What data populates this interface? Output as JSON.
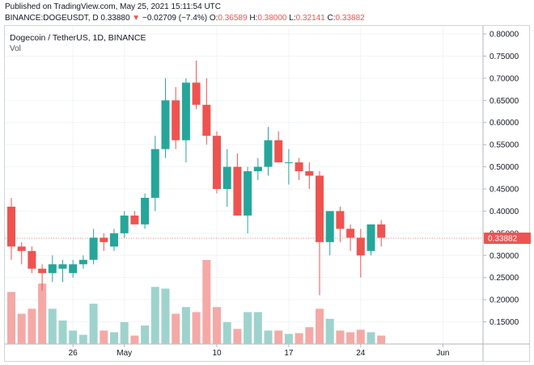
{
  "header": {
    "published_line": "Published on TradingView.com, May 25, 2021 15:11:54 UTC",
    "symbol": "BINANCE:DOGEUSDT, D",
    "last": "0.33880",
    "change": "−0.02709 (−7.4%)",
    "o_label": "O:",
    "o_value": "0.36589",
    "h_label": "H:",
    "h_value": "0.38000",
    "l_label": "L:",
    "l_value": "0.32141",
    "c_label": "C:",
    "c_value": "0.33882"
  },
  "legend": {
    "title": "Dogecoin / TetherUS, 1D, BINANCE",
    "volume_label": "Vol"
  },
  "colors": {
    "up": "#26a69a",
    "down": "#ef5350",
    "up_vol": "#9ed3cd",
    "down_vol": "#f5a9a7",
    "price_tag": "#ef5350"
  },
  "chart_data": {
    "type": "candlestick",
    "title": "Dogecoin / TetherUS, 1D, BINANCE",
    "xlabel": "",
    "ylabel": "",
    "ylim": [
      0.1,
      0.8
    ],
    "y_ticks": [
      "0.80000",
      "0.75000",
      "0.70000",
      "0.65000",
      "0.60000",
      "0.55000",
      "0.50000",
      "0.45000",
      "0.40000",
      "0.35000",
      "0.30000",
      "0.25000",
      "0.20000",
      "0.15000"
    ],
    "x_ticks": [
      {
        "label": "26",
        "index": 6
      },
      {
        "label": "May",
        "index": 11
      },
      {
        "label": "10",
        "index": 20
      },
      {
        "label": "17",
        "index": 27
      },
      {
        "label": "24",
        "index": 34
      },
      {
        "label": "Jun",
        "index": 42
      }
    ],
    "last_price_label": "0.33882",
    "last_price": 0.33882,
    "candles": [
      {
        "o": 0.41,
        "h": 0.43,
        "l": 0.29,
        "c": 0.32
      },
      {
        "o": 0.32,
        "h": 0.33,
        "l": 0.28,
        "c": 0.31
      },
      {
        "o": 0.31,
        "h": 0.32,
        "l": 0.26,
        "c": 0.27
      },
      {
        "o": 0.27,
        "h": 0.28,
        "l": 0.22,
        "c": 0.26
      },
      {
        "o": 0.26,
        "h": 0.3,
        "l": 0.24,
        "c": 0.28
      },
      {
        "o": 0.27,
        "h": 0.29,
        "l": 0.24,
        "c": 0.28
      },
      {
        "o": 0.26,
        "h": 0.29,
        "l": 0.25,
        "c": 0.28
      },
      {
        "o": 0.28,
        "h": 0.3,
        "l": 0.27,
        "c": 0.29
      },
      {
        "o": 0.29,
        "h": 0.36,
        "l": 0.28,
        "c": 0.34
      },
      {
        "o": 0.34,
        "h": 0.35,
        "l": 0.31,
        "c": 0.33
      },
      {
        "o": 0.32,
        "h": 0.36,
        "l": 0.31,
        "c": 0.35
      },
      {
        "o": 0.35,
        "h": 0.4,
        "l": 0.34,
        "c": 0.39
      },
      {
        "o": 0.39,
        "h": 0.4,
        "l": 0.37,
        "c": 0.37
      },
      {
        "o": 0.37,
        "h": 0.44,
        "l": 0.36,
        "c": 0.43
      },
      {
        "o": 0.43,
        "h": 0.57,
        "l": 0.4,
        "c": 0.54
      },
      {
        "o": 0.54,
        "h": 0.7,
        "l": 0.52,
        "c": 0.65
      },
      {
        "o": 0.65,
        "h": 0.68,
        "l": 0.54,
        "c": 0.56
      },
      {
        "o": 0.56,
        "h": 0.7,
        "l": 0.51,
        "c": 0.69
      },
      {
        "o": 0.69,
        "h": 0.74,
        "l": 0.63,
        "c": 0.64
      },
      {
        "o": 0.64,
        "h": 0.7,
        "l": 0.55,
        "c": 0.57
      },
      {
        "o": 0.57,
        "h": 0.58,
        "l": 0.44,
        "c": 0.45
      },
      {
        "o": 0.45,
        "h": 0.54,
        "l": 0.41,
        "c": 0.5
      },
      {
        "o": 0.5,
        "h": 0.53,
        "l": 0.39,
        "c": 0.39
      },
      {
        "o": 0.39,
        "h": 0.5,
        "l": 0.35,
        "c": 0.49
      },
      {
        "o": 0.49,
        "h": 0.52,
        "l": 0.47,
        "c": 0.5
      },
      {
        "o": 0.5,
        "h": 0.59,
        "l": 0.48,
        "c": 0.56
      },
      {
        "o": 0.56,
        "h": 0.58,
        "l": 0.51,
        "c": 0.51
      },
      {
        "o": 0.51,
        "h": 0.54,
        "l": 0.46,
        "c": 0.51
      },
      {
        "o": 0.51,
        "h": 0.52,
        "l": 0.47,
        "c": 0.49
      },
      {
        "o": 0.49,
        "h": 0.51,
        "l": 0.45,
        "c": 0.48
      },
      {
        "o": 0.48,
        "h": 0.49,
        "l": 0.21,
        "c": 0.33
      },
      {
        "o": 0.33,
        "h": 0.4,
        "l": 0.3,
        "c": 0.4
      },
      {
        "o": 0.4,
        "h": 0.41,
        "l": 0.33,
        "c": 0.36
      },
      {
        "o": 0.36,
        "h": 0.37,
        "l": 0.31,
        "c": 0.34
      },
      {
        "o": 0.34,
        "h": 0.36,
        "l": 0.25,
        "c": 0.3
      },
      {
        "o": 0.31,
        "h": 0.37,
        "l": 0.3,
        "c": 0.37
      },
      {
        "o": 0.37,
        "h": 0.38,
        "l": 0.32,
        "c": 0.34
      }
    ],
    "volumes": [
      0.62,
      0.36,
      0.42,
      0.72,
      0.42,
      0.28,
      0.16,
      0.11,
      0.48,
      0.16,
      0.14,
      0.26,
      0.1,
      0.22,
      0.68,
      0.66,
      0.36,
      0.44,
      0.38,
      1.0,
      0.44,
      0.26,
      0.18,
      0.38,
      0.38,
      0.16,
      0.16,
      0.12,
      0.13,
      0.2,
      0.42,
      0.3,
      0.16,
      0.14,
      0.17,
      0.14,
      0.1
    ]
  }
}
